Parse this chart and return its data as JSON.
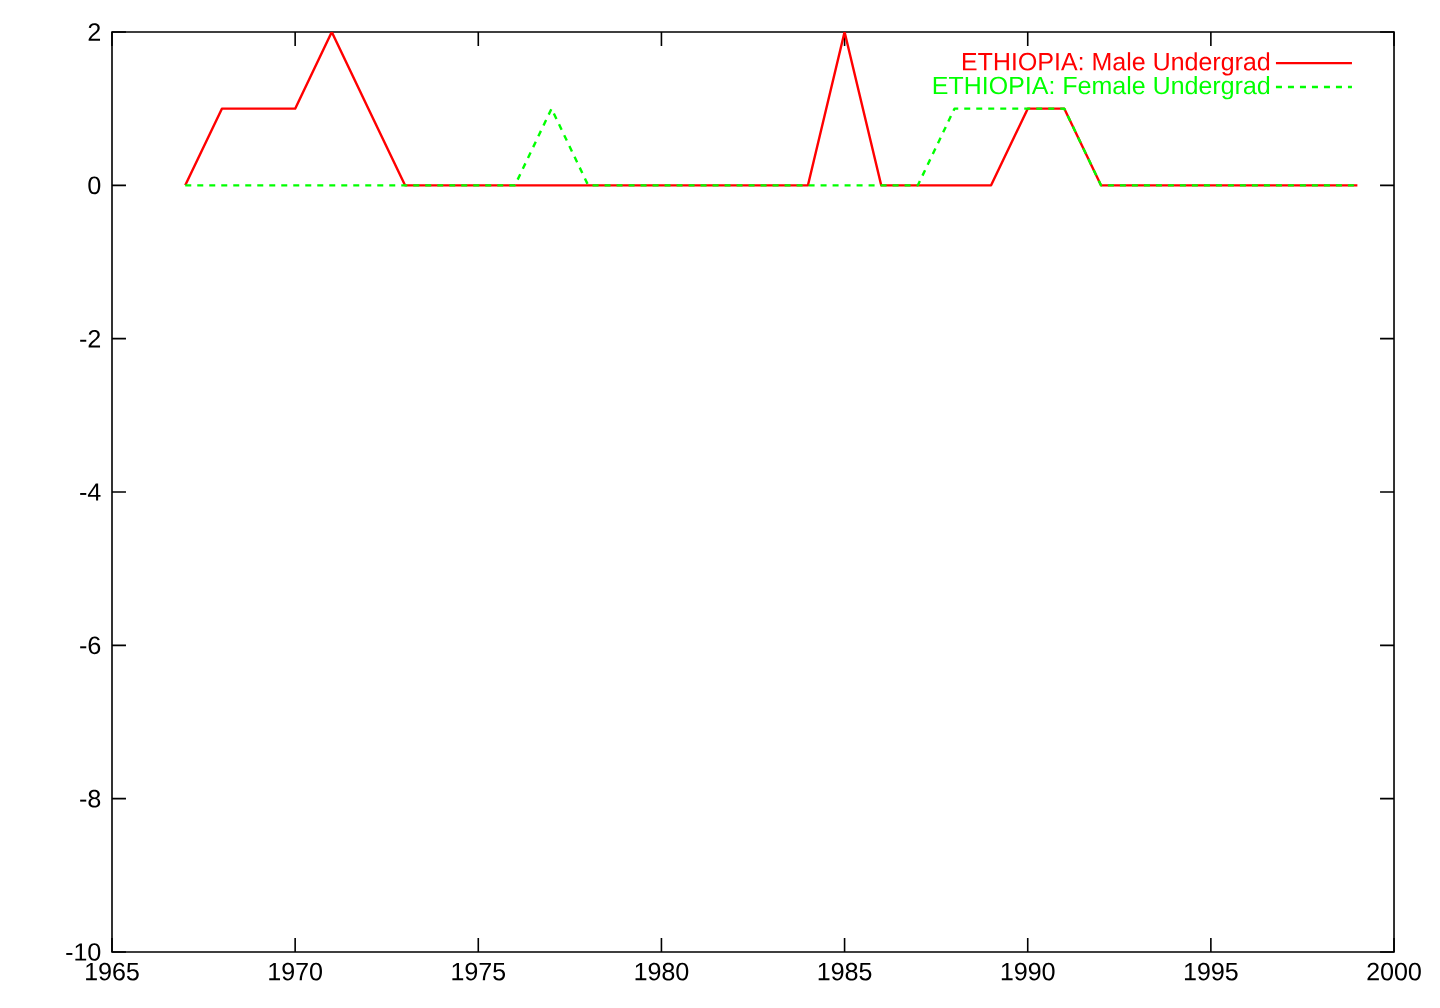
{
  "chart_data": {
    "type": "line",
    "x": [
      1967,
      1968,
      1969,
      1970,
      1971,
      1972,
      1973,
      1974,
      1975,
      1976,
      1977,
      1978,
      1979,
      1980,
      1981,
      1982,
      1983,
      1984,
      1985,
      1986,
      1987,
      1988,
      1989,
      1990,
      1991,
      1992,
      1993,
      1994,
      1995,
      1996,
      1997,
      1998,
      1999
    ],
    "series": [
      {
        "name": "ETHIOPIA: Male Undergrad",
        "color": "#ff0000",
        "line_style": "solid",
        "values": [
          0,
          1,
          1,
          1,
          2,
          1,
          0,
          0,
          0,
          0,
          0,
          0,
          0,
          0,
          0,
          0,
          0,
          0,
          2,
          0,
          0,
          0,
          0,
          1,
          1,
          0,
          0,
          0,
          0,
          0,
          0,
          0,
          0
        ]
      },
      {
        "name": "ETHIOPIA: Female Undergrad",
        "color": "#00ff00",
        "line_style": "dashed",
        "values": [
          0,
          0,
          0,
          0,
          0,
          0,
          0,
          0,
          0,
          0,
          1,
          0,
          0,
          0,
          0,
          0,
          0,
          0,
          0,
          0,
          0,
          1,
          1,
          1,
          1,
          0,
          0,
          0,
          0,
          0,
          0,
          0,
          0
        ]
      }
    ],
    "xlim": [
      1965,
      2000
    ],
    "ylim": [
      -10,
      2
    ],
    "xticks": [
      1965,
      1970,
      1975,
      1980,
      1985,
      1990,
      1995,
      2000
    ],
    "yticks": [
      -10,
      -8,
      -6,
      -4,
      -2,
      0,
      2
    ],
    "legend": "top right",
    "grid": false
  }
}
